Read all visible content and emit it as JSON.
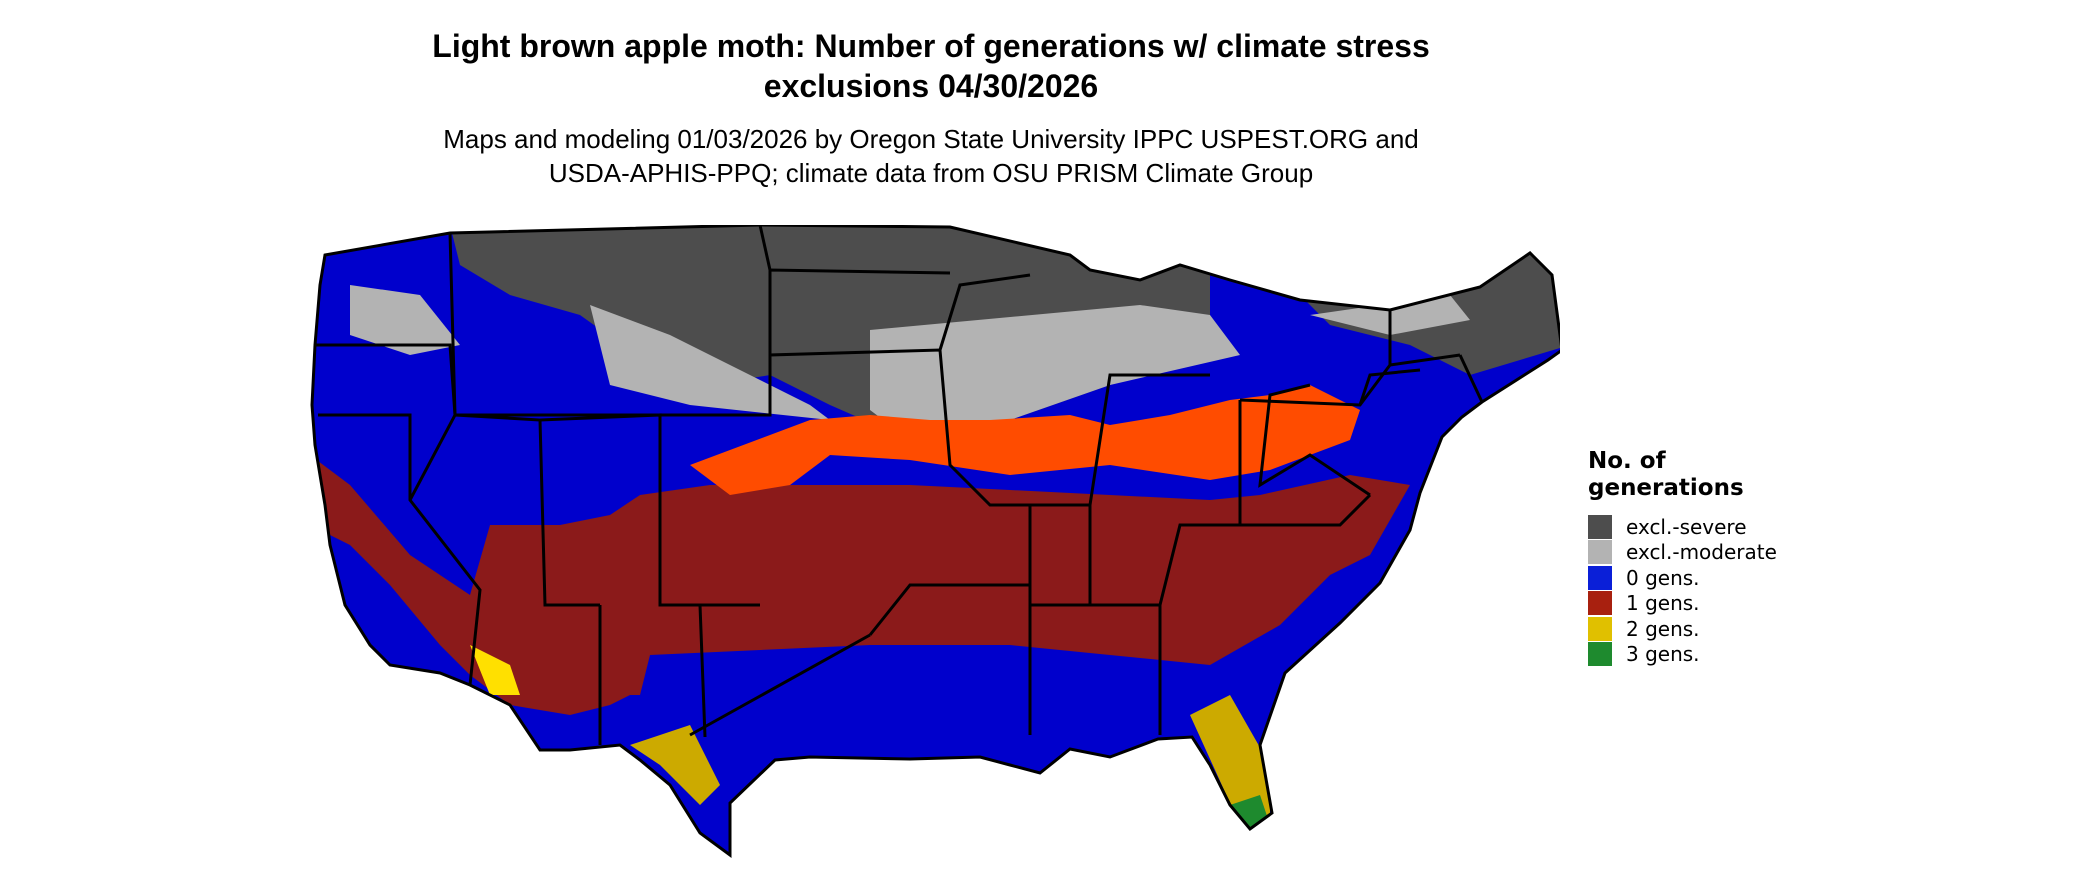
{
  "title_line1": "Light brown apple moth: Number of generations w/ climate stress",
  "title_line2": "exclusions 04/30/2026",
  "subtitle_line1": "Maps and modeling 01/03/2026 by Oregon State University IPPC USPEST.ORG and",
  "subtitle_line2": "USDA-APHIS-PPQ; climate data from OSU PRISM Climate Group",
  "legend": {
    "title_line1": "No. of",
    "title_line2": "generations",
    "items": [
      {
        "label": "excl.-severe",
        "color": "#4d4d4d"
      },
      {
        "label": "excl.-moderate",
        "color": "#b3b3b3"
      },
      {
        "label": "0 gens.",
        "color": "#0a1fd8"
      },
      {
        "label": "1 gens.",
        "color": "#a8200f"
      },
      {
        "label": "2 gens.",
        "color": "#e0c000"
      },
      {
        "label": "3 gens.",
        "color": "#1e8a2e"
      }
    ]
  },
  "map_colors": {
    "excl_severe": "#4d4d4d",
    "excl_moderate": "#b3b3b3",
    "zero_gens": "#0000cc",
    "one_gens_dark": "#8b1a1a",
    "one_gens_orange": "#ff4c00",
    "two_gens": "#ccaa00",
    "three_gens": "#1e8a2e"
  }
}
